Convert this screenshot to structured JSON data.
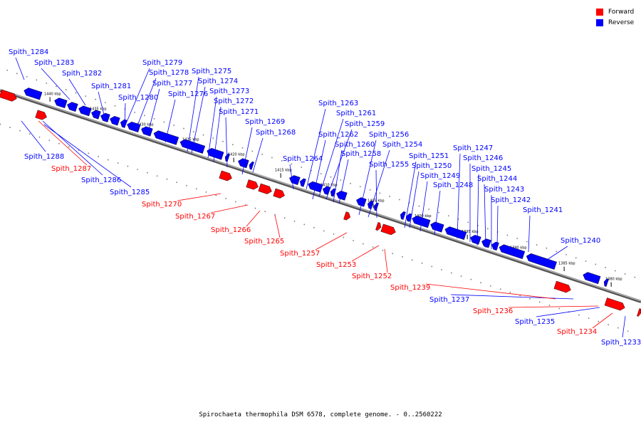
{
  "caption": "Spirochaeta thermophila DSM 6578, complete genome. - 0..2560222",
  "legend": [
    {
      "label": "Forward",
      "color": "#ff0000"
    },
    {
      "label": "Reverse",
      "color": "#0000ff"
    }
  ],
  "colors": {
    "forward": "#ff0000",
    "reverse": "#0000ff",
    "backbone": "#808080",
    "tick": "#000000"
  },
  "scale_labels": [
    "1440 kbp",
    "1435 kbp",
    "1430 kbp",
    "1425 kbp",
    "1420 kbp",
    "1415 kbp",
    "1410 kbp",
    "1405 kbp",
    "1400 kbp",
    "1395 kbp",
    "1390 kbp",
    "1385 kbp",
    "1380 kbp"
  ],
  "reverse_genes": [
    "Spith_1284",
    "Spith_1283",
    "Spith_1282",
    "Spith_1281",
    "Spith_1280",
    "Spith_1279",
    "Spith_1278",
    "Spith_1277",
    "Spith_1276",
    "Spith_1275",
    "Spith_1274",
    "Spith_1273",
    "Spith_1272",
    "Spith_1271",
    "Spith_1269",
    "Spith_1268",
    "Spith_1264",
    "Spith_1263",
    "Spith_1261",
    "Spith_1259",
    "Spith_1262",
    "Spith_1260",
    "Spith_1258",
    "Spith_1256",
    "Spith_1254",
    "Spith_1255",
    "Spith_1251",
    "Spith_1250",
    "Spith_1249",
    "Spith_1248",
    "Spith_1247",
    "Spith_1246",
    "Spith_1245",
    "Spith_1244",
    "Spith_1243",
    "Spith_1242",
    "Spith_1241",
    "Spith_1240",
    "Spith_1288",
    "Spith_1286",
    "Spith_1285",
    "Spith_1237",
    "Spith_1235",
    "Spith_1233"
  ],
  "forward_genes": [
    "Spith_1287",
    "Spith_1270",
    "Spith_1267",
    "Spith_1266",
    "Spith_1265",
    "Spith_1257",
    "Spith_1253",
    "Spith_1252",
    "Spith_1239",
    "Spith_1236",
    "Spith_1234"
  ]
}
